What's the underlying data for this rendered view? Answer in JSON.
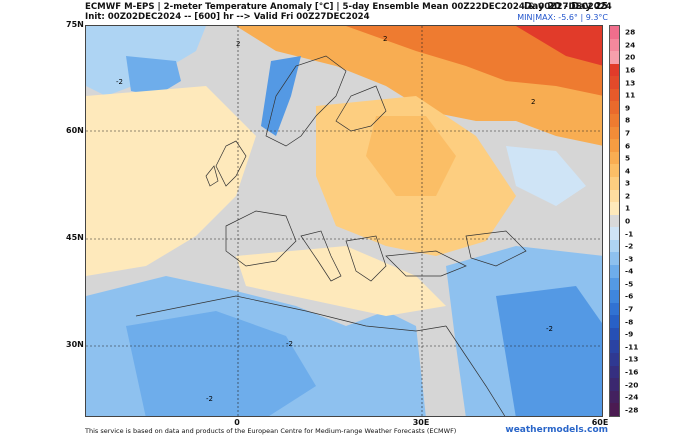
{
  "header": {
    "line1": "ECMWF M-EPS | 2-meter Temperature Anomaly [°C] | 5-day Ensemble Mean 00Z22DEC2024 & 00Z27DEC2024",
    "line2": "Init: 00Z02DEC2024 -- [600] hr --> Valid Fri 00Z27DEC2024",
    "day_range": "Day 20 - Day 25",
    "minmax": "MIN|MAX: -5.6° | 9.3°C"
  },
  "map": {
    "lat_labels": [
      "75N",
      "60N",
      "45N",
      "30N"
    ],
    "lon_labels": [
      "0",
      "30E",
      "60E"
    ],
    "contour_label": "2",
    "contour_label_neg": "-2"
  },
  "colorbar": {
    "ticks": [
      "28",
      "24",
      "20",
      "16",
      "13",
      "11",
      "9",
      "8",
      "7",
      "6",
      "5",
      "4",
      "3",
      "2",
      "1",
      "0",
      "-1",
      "-2",
      "-3",
      "-4",
      "-5",
      "-6",
      "-7",
      "-8",
      "-9",
      "-11",
      "-13",
      "-16",
      "-20",
      "-24",
      "-28"
    ],
    "colors": [
      "#f06e8c",
      "#f4889c",
      "#f7a0ac",
      "#e13b2a",
      "#e34a2a",
      "#e75a2a",
      "#ea6a2c",
      "#ee7b30",
      "#f28c38",
      "#f59c42",
      "#f8ad52",
      "#fbbe66",
      "#fdce80",
      "#feddA0",
      "#fee9bb",
      "#d9d9d9",
      "#cfe4f6",
      "#aed4f3",
      "#8ec1ef",
      "#6eadeb",
      "#5499e4",
      "#3f86dd",
      "#3172d3",
      "#2860c6",
      "#2650b5",
      "#2a43a3",
      "#2f3992",
      "#352f80",
      "#3b286f",
      "#43215f",
      "#4b1b52"
    ]
  },
  "footer": {
    "note": "This service is based on data and products of the European Centre for Medium-range Weather Forecasts (ECMWF)",
    "brand": "weathermodels.com"
  }
}
